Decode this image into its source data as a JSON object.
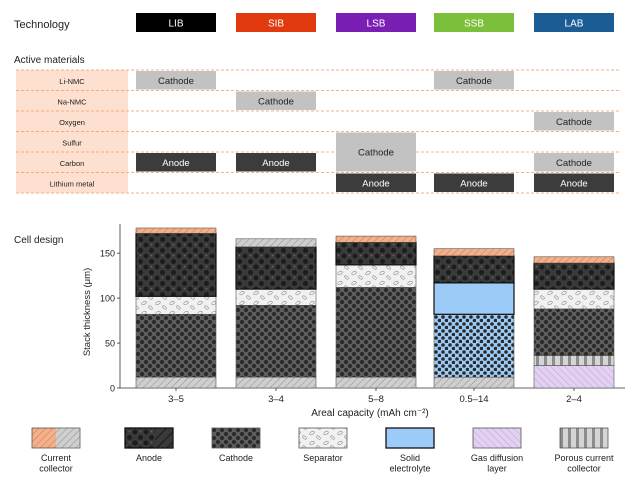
{
  "figure": {
    "technology_heading": "Technology",
    "active_materials_heading": "Active materials",
    "cell_design_heading": "Cell design"
  },
  "technologies": [
    {
      "label": "LIB",
      "color": "#000000"
    },
    {
      "label": "SIB",
      "color": "#e03a0e"
    },
    {
      "label": "LSB",
      "color": "#7a1fb4"
    },
    {
      "label": "SSB",
      "color": "#7cbf3a"
    },
    {
      "label": "LAB",
      "color": "#1b5c95"
    }
  ],
  "materials": [
    "Li-NMC",
    "Na-NMC",
    "Oxygen",
    "Sulfur",
    "Carbon",
    "Lithium metal"
  ],
  "material_blocks": [
    {
      "tech": 0,
      "row_start": 0,
      "row_end": 0,
      "label": "Cathode",
      "role": "cathode"
    },
    {
      "tech": 0,
      "row_start": 4,
      "row_end": 4,
      "label": "Anode",
      "role": "anode"
    },
    {
      "tech": 1,
      "row_start": 1,
      "row_end": 1,
      "label": "Cathode",
      "role": "cathode"
    },
    {
      "tech": 1,
      "row_start": 4,
      "row_end": 4,
      "label": "Anode",
      "role": "anode"
    },
    {
      "tech": 2,
      "row_start": 3,
      "row_end": 4,
      "label": "Cathode",
      "role": "cathode"
    },
    {
      "tech": 2,
      "row_start": 5,
      "row_end": 5,
      "label": "Anode",
      "role": "anode"
    },
    {
      "tech": 3,
      "row_start": 0,
      "row_end": 0,
      "label": "Cathode",
      "role": "cathode"
    },
    {
      "tech": 3,
      "row_start": 5,
      "row_end": 5,
      "label": "Anode",
      "role": "anode"
    },
    {
      "tech": 4,
      "row_start": 2,
      "row_end": 2,
      "label": "Cathode",
      "role": "cathode"
    },
    {
      "tech": 4,
      "row_start": 4,
      "row_end": 4,
      "label": "Cathode",
      "role": "cathode"
    },
    {
      "tech": 4,
      "row_start": 5,
      "row_end": 5,
      "label": "Anode",
      "role": "anode"
    }
  ],
  "layer_types": [
    {
      "key": "cc",
      "label": "Current collector",
      "color": "#f2a87e"
    },
    {
      "key": "anode",
      "label": "Anode",
      "color": "#3a3a3a"
    },
    {
      "key": "cathode",
      "label": "Cathode",
      "color": "#5e5e5e"
    },
    {
      "key": "sep",
      "label": "Separator",
      "color": "#ececec"
    },
    {
      "key": "se",
      "label": "Solid electrolyte",
      "color": "#9dcbf7"
    },
    {
      "key": "gdl",
      "label": "Gas diffusion layer",
      "color": "#dcc7ee"
    },
    {
      "key": "pcc",
      "label": "Porous current collector",
      "color": "#bdbdbd"
    }
  ],
  "chart_data": {
    "type": "bar",
    "stacked": true,
    "categories": [
      "3–5",
      "3–4",
      "5–8",
      "0.5–14",
      "2–4"
    ],
    "xlabel": "Areal capacity (mAh cm⁻²)",
    "ylabel": "Stack thickness (μm)",
    "ylim": [
      0,
      178
    ],
    "yticks": [
      0,
      50,
      100,
      150
    ],
    "stacks": [
      [
        {
          "layer": "cc",
          "from": 0,
          "to": 12,
          "style": "gray"
        },
        {
          "layer": "cathode",
          "from": 12,
          "to": 82
        },
        {
          "layer": "sep",
          "from": 82,
          "to": 102
        },
        {
          "layer": "anode",
          "from": 102,
          "to": 172
        },
        {
          "layer": "cc",
          "from": 172,
          "to": 178
        }
      ],
      [
        {
          "layer": "cc",
          "from": 0,
          "to": 12,
          "style": "gray"
        },
        {
          "layer": "cathode",
          "from": 12,
          "to": 92
        },
        {
          "layer": "sep",
          "from": 92,
          "to": 110
        },
        {
          "layer": "anode",
          "from": 110,
          "to": 157
        },
        {
          "layer": "cc",
          "from": 157,
          "to": 166,
          "style": "gray"
        }
      ],
      [
        {
          "layer": "cc",
          "from": 0,
          "to": 12,
          "style": "gray"
        },
        {
          "layer": "cathode",
          "from": 12,
          "to": 112
        },
        {
          "layer": "sep",
          "from": 112,
          "to": 137
        },
        {
          "layer": "anode",
          "from": 137,
          "to": 162
        },
        {
          "layer": "cc",
          "from": 162,
          "to": 169
        }
      ],
      [
        {
          "layer": "cc",
          "from": 0,
          "to": 12,
          "style": "gray"
        },
        {
          "layer": "se",
          "from": 12,
          "to": 82,
          "dotted": true
        },
        {
          "layer": "se",
          "from": 82,
          "to": 117
        },
        {
          "layer": "anode",
          "from": 117,
          "to": 147
        },
        {
          "layer": "cc",
          "from": 147,
          "to": 155
        }
      ],
      [
        {
          "layer": "gdl",
          "from": 0,
          "to": 25
        },
        {
          "layer": "pcc",
          "from": 25,
          "to": 36
        },
        {
          "layer": "cathode",
          "from": 36,
          "to": 88
        },
        {
          "layer": "sep",
          "from": 88,
          "to": 110
        },
        {
          "layer": "anode",
          "from": 110,
          "to": 139
        },
        {
          "layer": "cc",
          "from": 139,
          "to": 146
        }
      ]
    ]
  }
}
